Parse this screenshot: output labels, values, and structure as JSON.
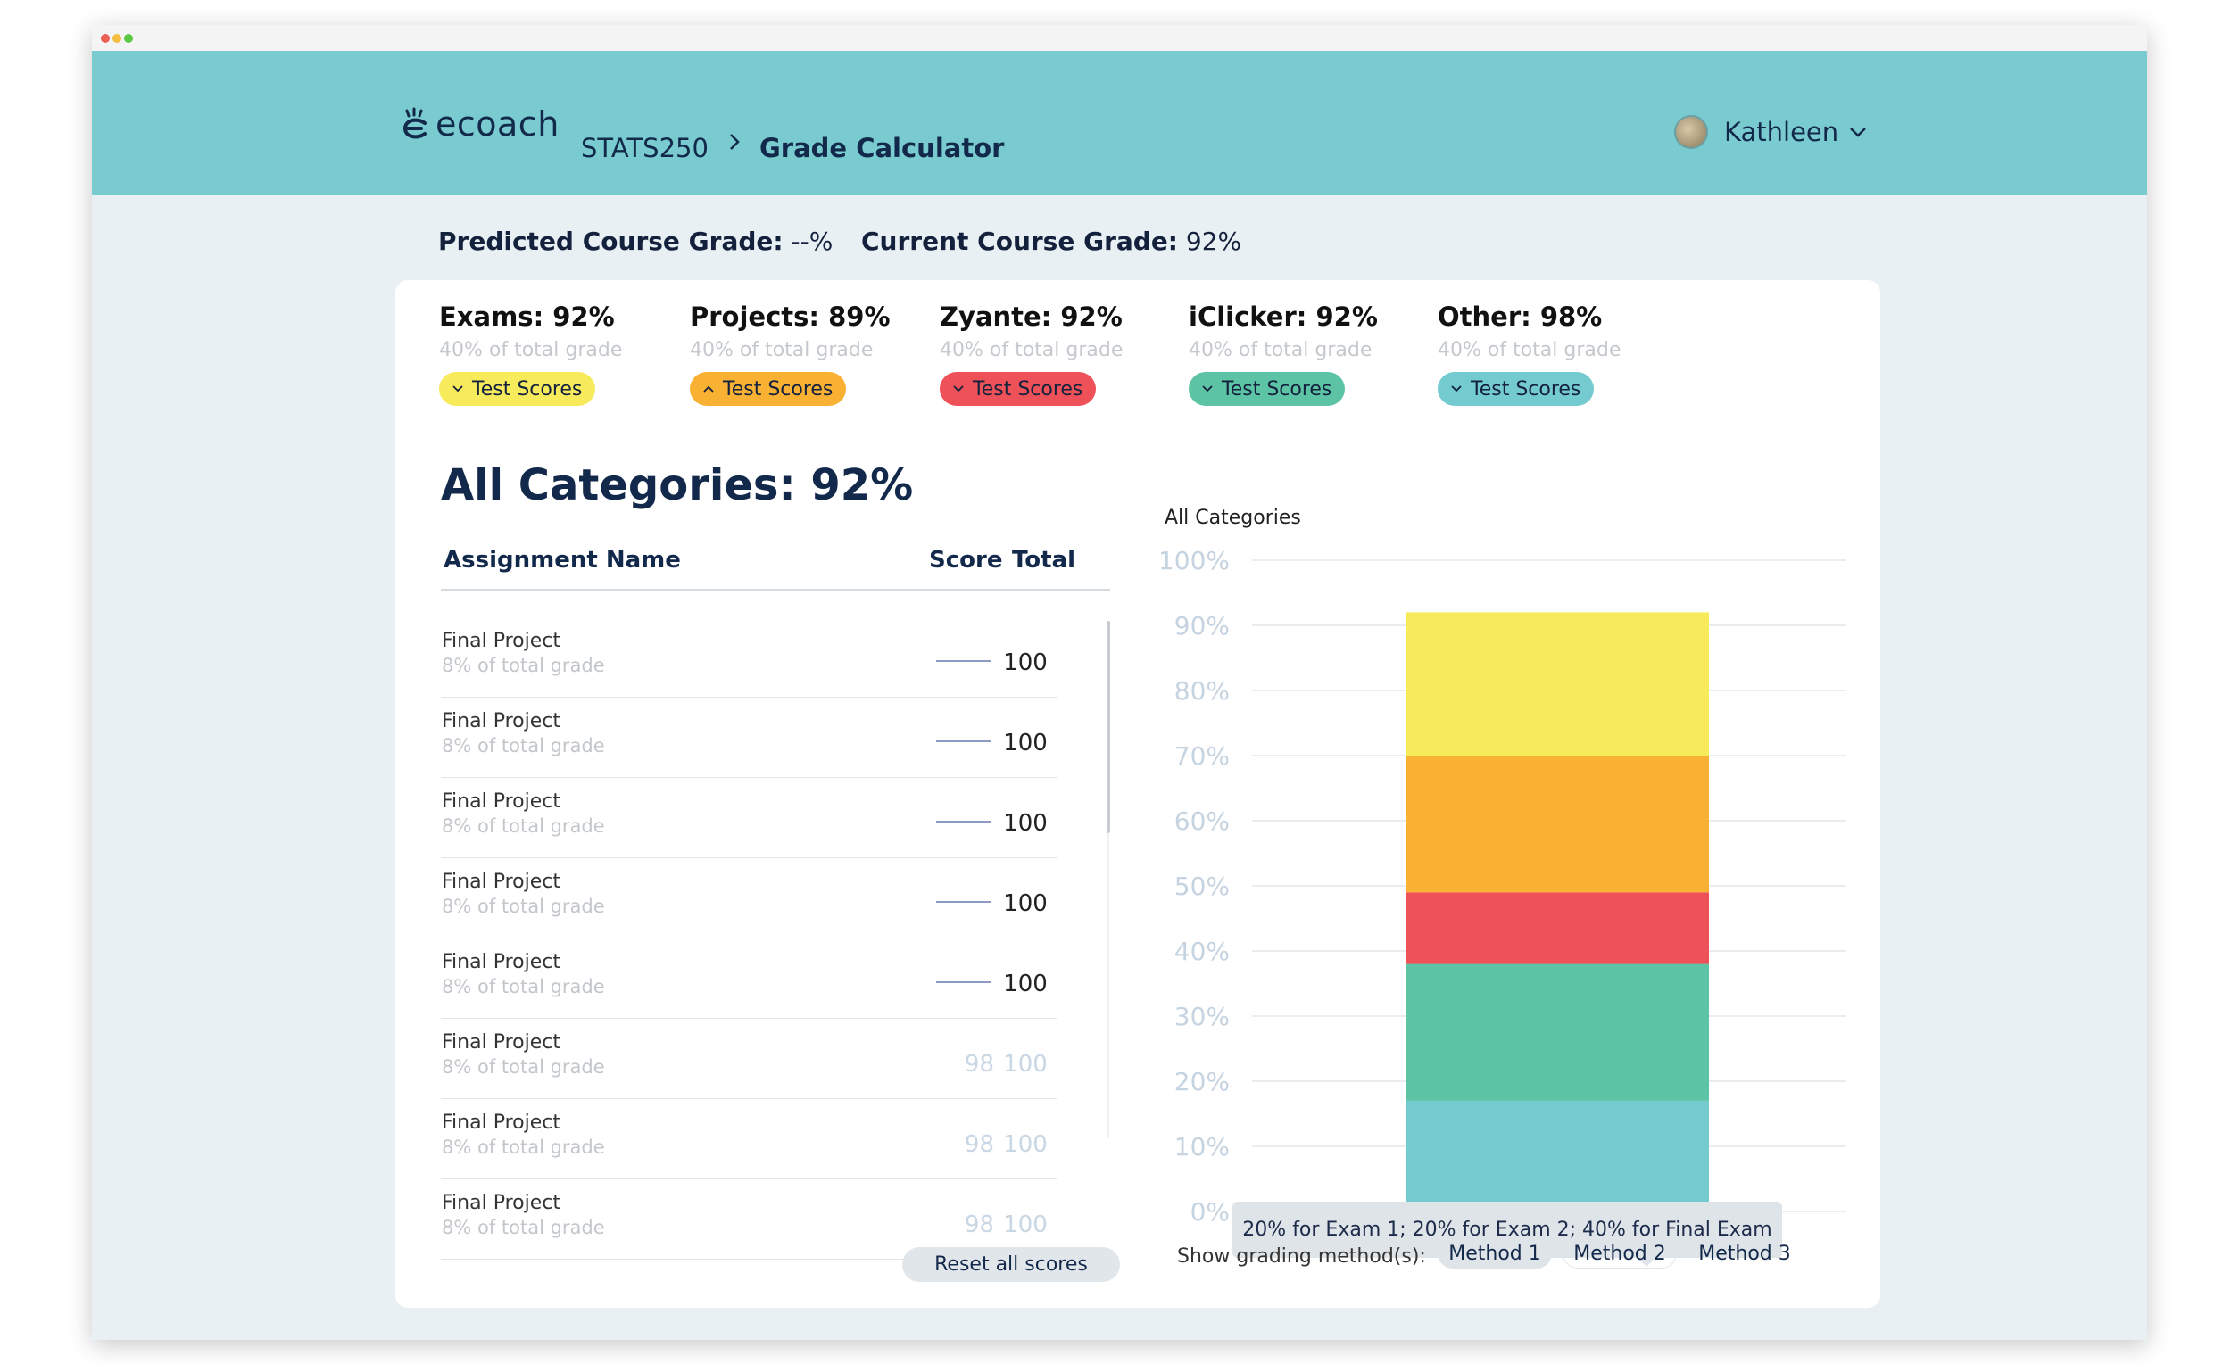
{
  "header": {
    "logo_text": "ecoach",
    "course": "STATS250",
    "page_title": "Grade Calculator",
    "user_name": "Kathleen"
  },
  "summary": {
    "predicted_label": "Predicted Course Grade:",
    "predicted_value": "--%",
    "current_label": "Current Course Grade:",
    "current_value": "92%"
  },
  "categories": [
    {
      "title": "Exams: 92%",
      "subtitle": "40% of total grade",
      "pill": "Test Scores",
      "color": "#f7ea5b",
      "chevron": "down"
    },
    {
      "title": "Projects: 89%",
      "subtitle": "40% of total grade",
      "pill": "Test Scores",
      "color": "#f8b133",
      "chevron": "up"
    },
    {
      "title": "Zyante: 92%",
      "subtitle": "40% of total grade",
      "pill": "Test Scores",
      "color": "#ee5157",
      "chevron": "down"
    },
    {
      "title": "iClicker: 92%",
      "subtitle": "40% of total grade",
      "pill": "Test Scores",
      "color": "#5cc4a4",
      "chevron": "down"
    },
    {
      "title": "Other: 98%",
      "subtitle": "40% of total grade",
      "pill": "Test Scores",
      "color": "#74cbcf",
      "chevron": "down"
    }
  ],
  "all_categories_title": "All Categories: 92%",
  "table": {
    "headers": {
      "name": "Assignment Name",
      "score": "Score",
      "total": "Total"
    },
    "rows": [
      {
        "name": "Final Project",
        "sub": "8% of total grade",
        "score": "",
        "total": "100",
        "editable": true
      },
      {
        "name": "Final Project",
        "sub": "8% of total grade",
        "score": "",
        "total": "100",
        "editable": true
      },
      {
        "name": "Final Project",
        "sub": "8% of total grade",
        "score": "",
        "total": "100",
        "editable": true
      },
      {
        "name": "Final Project",
        "sub": "8% of total grade",
        "score": "",
        "total": "100",
        "editable": true
      },
      {
        "name": "Final Project",
        "sub": "8% of total grade",
        "score": "",
        "total": "100",
        "editable": true
      },
      {
        "name": "Final Project",
        "sub": "8% of total grade",
        "score": "98",
        "total": "100",
        "editable": false
      },
      {
        "name": "Final Project",
        "sub": "8% of total grade",
        "score": "98",
        "total": "100",
        "editable": false
      },
      {
        "name": "Final Project",
        "sub": "8% of total grade",
        "score": "98",
        "total": "100",
        "editable": false
      }
    ]
  },
  "reset_label": "Reset all scores",
  "chart_title": "All Categories",
  "chart_data": {
    "type": "bar",
    "stacked": true,
    "title": "All Categories",
    "categories": [
      "All Categories"
    ],
    "ylim": [
      0,
      100
    ],
    "yticks": [
      "0%",
      "10%",
      "20%",
      "30%",
      "40%",
      "50%",
      "60%",
      "70%",
      "80%",
      "90%",
      "100%"
    ],
    "grid": true,
    "series": [
      {
        "values": [
          17
        ],
        "color": "#74cbcf"
      },
      {
        "values": [
          21
        ],
        "color": "#5cc4a4"
      },
      {
        "values": [
          11
        ],
        "color": "#ee5157"
      },
      {
        "values": [
          21
        ],
        "color": "#f8b133"
      },
      {
        "values": [
          22
        ],
        "color": "#f7ea5b"
      }
    ]
  },
  "tooltip": "20% for Exam 1; 20% for Exam 2; 40% for Final Exam",
  "methods": {
    "label": "Show grading method(s):",
    "items": [
      "Method 1",
      "Method 2",
      "Method 3"
    ],
    "selected": "Method 1"
  }
}
